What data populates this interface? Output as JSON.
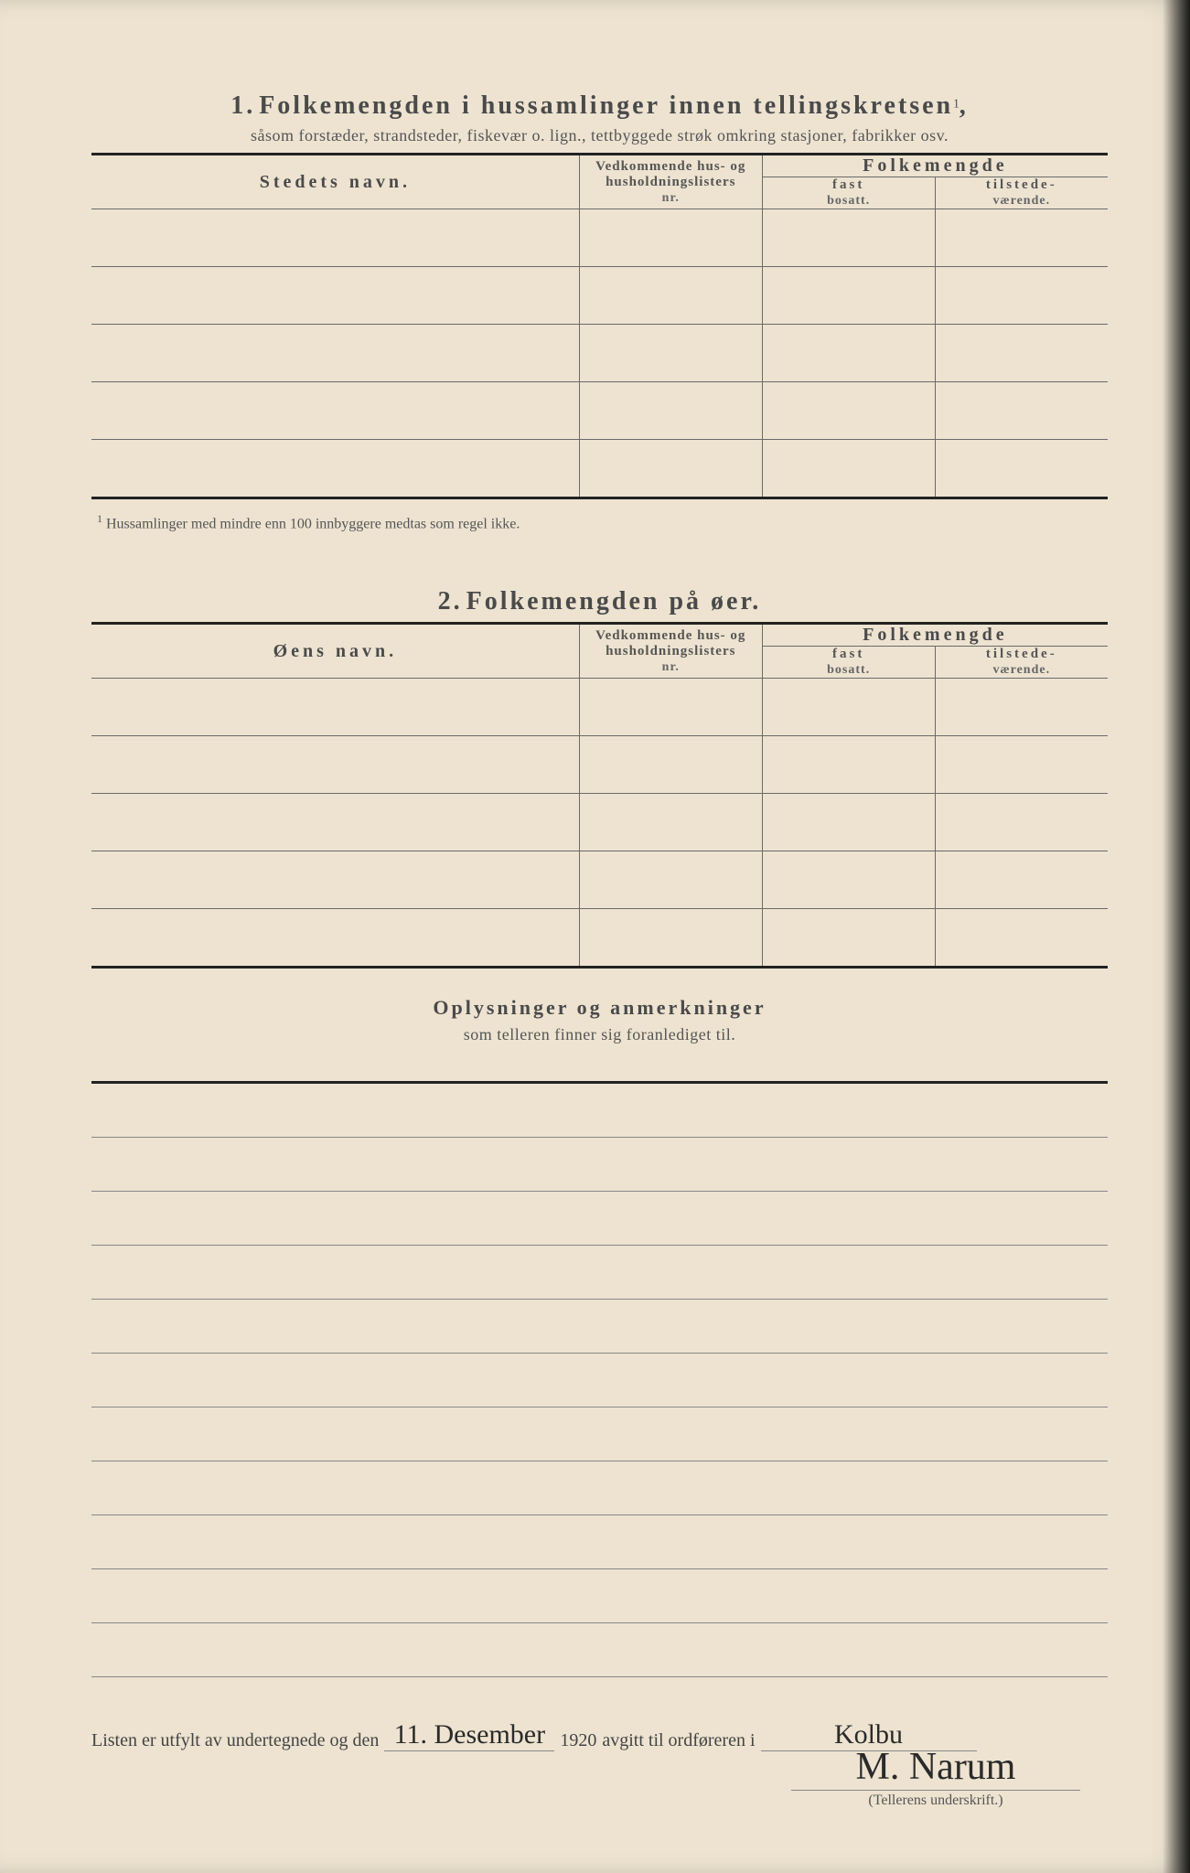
{
  "section1": {
    "number": "1.",
    "title": "Folkemengden i hussamlinger innen tellingskretsen",
    "title_sup": "1",
    "subtitle": "såsom forstæder, strandsteder, fiskevær o. lign., tettbyggede strøk omkring stasjoner, fabrikker osv.",
    "col_name": "Stedets navn.",
    "col_mid_1": "Vedkommende hus- og",
    "col_mid_2": "husholdningslisters",
    "col_mid_3": "nr.",
    "col_folk": "Folkemengde",
    "col_fast_1": "fast",
    "col_fast_2": "bosatt.",
    "col_til_1": "tilstede-",
    "col_til_2": "værende.",
    "row_count": 5,
    "footnote": "Hussamlinger med mindre enn 100 innbyggere medtas som regel ikke."
  },
  "section2": {
    "number": "2.",
    "title": "Folkemengden på øer.",
    "col_name": "Øens navn.",
    "col_mid_1": "Vedkommende hus- og",
    "col_mid_2": "husholdningslisters",
    "col_mid_3": "nr.",
    "col_folk": "Folkemengde",
    "col_fast_1": "fast",
    "col_fast_2": "bosatt.",
    "col_til_1": "tilstede-",
    "col_til_2": "værende.",
    "row_count": 5
  },
  "section3": {
    "title": "Oplysninger og anmerkninger",
    "subtitle": "som telleren finner sig foranlediget til.",
    "line_count": 11
  },
  "signature": {
    "pre": "Listen er utfylt av undertegnede og den",
    "date_hand": "11. Desember",
    "year": "1920",
    "mid": "avgitt til ordføreren i",
    "place_hand": "Kolbu",
    "signature_hand": "M. Narum",
    "caption": "(Tellerens underskrift.)"
  },
  "style": {
    "paper_color": "#ede3d0",
    "ink_color": "#4a4a4a",
    "rule_color": "#6a6a6a",
    "heavy_rule_color": "#222222",
    "handwriting_color": "#2a2a2a"
  }
}
